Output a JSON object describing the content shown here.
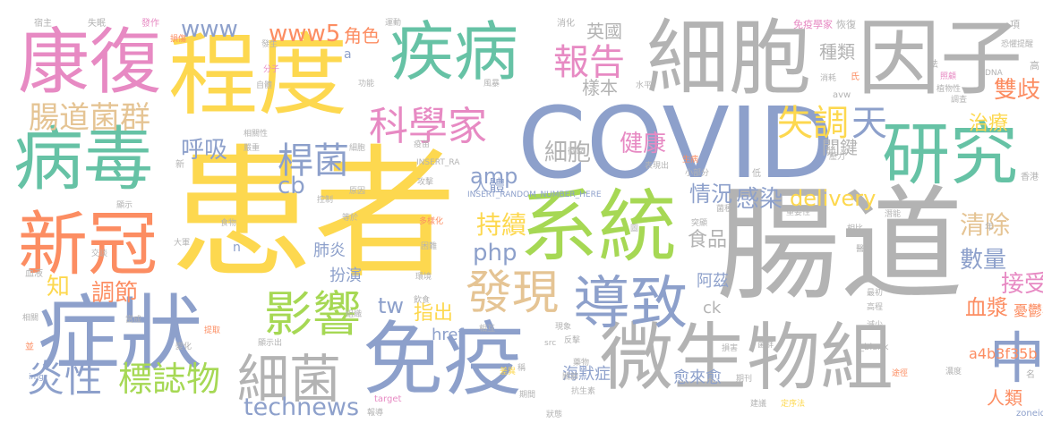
{
  "palette": {
    "yellow": "#fdd84f",
    "gray": "#b3b3b3",
    "teal": "#66c2a5",
    "pink": "#e78ac3",
    "orange": "#fc8d62",
    "blue": "#8da0cb",
    "green": "#a6d854",
    "tan": "#e5c494"
  },
  "words": [
    {
      "text": "患者",
      "color": "yellow"
    },
    {
      "text": "腸道",
      "color": "gray"
    },
    {
      "text": "COVID",
      "color": "blue"
    },
    {
      "text": "細胞",
      "color": "gray"
    },
    {
      "text": "因子",
      "color": "gray"
    },
    {
      "text": "程度",
      "color": "yellow"
    },
    {
      "text": "疾病",
      "color": "teal"
    },
    {
      "text": "康復",
      "color": "pink"
    },
    {
      "text": "病毒",
      "color": "teal"
    },
    {
      "text": "系統",
      "color": "green"
    },
    {
      "text": "免疫",
      "color": "blue"
    },
    {
      "text": "微生物組",
      "color": "gray"
    },
    {
      "text": "症狀",
      "color": "blue"
    },
    {
      "text": "新冠",
      "color": "orange"
    },
    {
      "text": "研究",
      "color": "teal"
    },
    {
      "text": "導致",
      "color": "blue"
    },
    {
      "text": "細菌",
      "color": "gray"
    },
    {
      "text": "影響",
      "color": "green"
    },
    {
      "text": "發現",
      "color": "tan"
    },
    {
      "text": "科學家",
      "color": "pink"
    },
    {
      "text": "報告",
      "color": "pink"
    },
    {
      "text": "桿菌",
      "color": "blue"
    },
    {
      "text": "腸道菌群",
      "color": "tan"
    },
    {
      "text": "標誌物",
      "color": "green"
    },
    {
      "text": "炎性",
      "color": "blue"
    },
    {
      "text": "technews",
      "color": "blue"
    },
    {
      "text": "中",
      "color": "blue"
    },
    {
      "text": "失調",
      "color": "yellow"
    },
    {
      "text": "天",
      "color": "blue"
    },
    {
      "text": "www5",
      "color": "orange"
    },
    {
      "text": "www",
      "color": "blue"
    },
    {
      "text": "呼吸",
      "color": "blue"
    },
    {
      "text": "細胞",
      "color": "gray"
    },
    {
      "text": "健康",
      "color": "pink"
    },
    {
      "text": "感染",
      "color": "blue"
    },
    {
      "text": "delivery",
      "color": "yellow"
    },
    {
      "text": "持續",
      "color": "yellow"
    },
    {
      "text": "amp",
      "color": "blue"
    },
    {
      "text": "情況",
      "color": "blue"
    },
    {
      "text": "雙歧",
      "color": "orange"
    },
    {
      "text": "治療",
      "color": "yellow"
    },
    {
      "text": "關鍵",
      "color": "gray"
    },
    {
      "text": "種類",
      "color": "gray"
    },
    {
      "text": "清除",
      "color": "tan"
    },
    {
      "text": "數量",
      "color": "blue"
    },
    {
      "text": "接受",
      "color": "pink"
    },
    {
      "text": "血漿",
      "color": "orange"
    },
    {
      "text": "憂鬱症",
      "color": "orange"
    },
    {
      "text": "a4b3f35b",
      "color": "orange"
    },
    {
      "text": "英國",
      "color": "gray"
    },
    {
      "text": "樣本",
      "color": "gray"
    },
    {
      "text": "角色",
      "color": "orange"
    },
    {
      "text": "cb",
      "color": "blue"
    },
    {
      "text": "php",
      "color": "blue"
    },
    {
      "text": "食品",
      "color": "gray"
    },
    {
      "text": "tw",
      "color": "blue"
    },
    {
      "text": "指出",
      "color": "yellow"
    },
    {
      "text": "href",
      "color": "blue"
    },
    {
      "text": "阿茲",
      "color": "blue"
    },
    {
      "text": "海默症",
      "color": "blue"
    },
    {
      "text": "愈來愈",
      "color": "blue"
    },
    {
      "text": "人類",
      "color": "orange"
    },
    {
      "text": "肺炎",
      "color": "blue"
    },
    {
      "text": "扮演",
      "color": "blue"
    },
    {
      "text": "調節",
      "color": "orange"
    },
    {
      "text": "知",
      "color": "yellow"
    },
    {
      "text": "人體",
      "color": "blue"
    },
    {
      "text": "ck",
      "color": "gray"
    },
    {
      "text": "n",
      "color": "blue"
    },
    {
      "text": "a",
      "color": "blue"
    },
    {
      "text": "免疫學家",
      "color": "pink"
    },
    {
      "text": "恢復",
      "color": "gray"
    },
    {
      "text": "項",
      "color": "gray"
    },
    {
      "text": "消化",
      "color": "gray"
    },
    {
      "text": "運動",
      "color": "gray"
    },
    {
      "text": "INSERT_RANDOM_NUMBER_HERE",
      "color": "blue"
    },
    {
      "text": "INSERT_RA",
      "color": "gray"
    },
    {
      "text": "zoneid",
      "color": "blue"
    },
    {
      "text": "_blank",
      "color": "gray"
    },
    {
      "text": "target",
      "color": "pink"
    },
    {
      "text": "img",
      "color": "blue"
    },
    {
      "text": "src",
      "color": "gray"
    },
    {
      "text": "avw",
      "color": "gray"
    },
    {
      "text": "DNA",
      "color": "gray"
    },
    {
      "text": "高",
      "color": "gray"
    },
    {
      "text": "香港",
      "color": "gray"
    },
    {
      "text": "血液",
      "color": "gray"
    },
    {
      "text": "損傷",
      "color": "orange"
    },
    {
      "text": "發作",
      "color": "pink"
    },
    {
      "text": "失眠",
      "color": "gray"
    },
    {
      "text": "宿主",
      "color": "gray"
    },
    {
      "text": "表現出",
      "color": "gray"
    },
    {
      "text": "生病",
      "color": "orange"
    },
    {
      "text": "小部分",
      "color": "gray"
    },
    {
      "text": "原因",
      "color": "gray"
    },
    {
      "text": "相互",
      "color": "gray"
    },
    {
      "text": "現象",
      "color": "gray"
    },
    {
      "text": "反擊",
      "color": "gray"
    },
    {
      "text": "藥物",
      "color": "gray"
    },
    {
      "text": "抗生素",
      "color": "gray"
    },
    {
      "text": "關節",
      "color": "gray"
    },
    {
      "text": "期刊",
      "color": "gray"
    },
    {
      "text": "菌群",
      "color": "gray"
    },
    {
      "text": "損害",
      "color": "gray"
    },
    {
      "text": "醫學",
      "color": "gray"
    },
    {
      "text": "提取",
      "color": "orange"
    },
    {
      "text": "多樣化",
      "color": "orange"
    },
    {
      "text": "困難",
      "color": "gray"
    },
    {
      "text": "大軍",
      "color": "gray"
    },
    {
      "text": "食物",
      "color": "gray"
    },
    {
      "text": "控制",
      "color": "gray"
    },
    {
      "text": "顯示",
      "color": "gray"
    },
    {
      "text": "發生",
      "color": "gray"
    },
    {
      "text": "分子",
      "color": "pink"
    },
    {
      "text": "消耗",
      "color": "gray"
    },
    {
      "text": "恐懼",
      "color": "gray"
    },
    {
      "text": "植物性",
      "color": "gray"
    },
    {
      "text": "照顧",
      "color": "pink"
    },
    {
      "text": "調查",
      "color": "gray"
    },
    {
      "text": "重要性",
      "color": "gray"
    },
    {
      "text": "相比",
      "color": "gray"
    },
    {
      "text": "潛能",
      "color": "gray"
    },
    {
      "text": "濃度",
      "color": "gray"
    },
    {
      "text": "壓力",
      "color": "gray"
    },
    {
      "text": "相關性",
      "color": "gray"
    },
    {
      "text": "嚴重",
      "color": "gray"
    },
    {
      "text": "變化",
      "color": "gray"
    },
    {
      "text": "疫苗",
      "color": "gray"
    },
    {
      "text": "功能",
      "color": "gray"
    },
    {
      "text": "自體",
      "color": "gray"
    },
    {
      "text": "水平",
      "color": "gray"
    },
    {
      "text": "風暴",
      "color": "gray"
    },
    {
      "text": "攻擊",
      "color": "gray"
    },
    {
      "text": "等於",
      "color": "gray"
    },
    {
      "text": "當成",
      "color": "gray"
    },
    {
      "text": "相關",
      "color": "gray"
    },
    {
      "text": "顯示出",
      "color": "gray"
    },
    {
      "text": "組織",
      "color": "gray"
    },
    {
      "text": "飲食",
      "color": "gray"
    },
    {
      "text": "環境",
      "color": "gray"
    },
    {
      "text": "稱",
      "color": "gray"
    },
    {
      "text": "狀態",
      "color": "gray"
    },
    {
      "text": "期間",
      "color": "gray"
    },
    {
      "text": "差異",
      "color": "gray"
    },
    {
      "text": "定序法",
      "color": "gray"
    },
    {
      "text": "建議",
      "color": "gray"
    },
    {
      "text": "高程",
      "color": "gray"
    },
    {
      "text": "最初",
      "color": "gray"
    },
    {
      "text": "減少",
      "color": "gray"
    },
    {
      "text": "突顯",
      "color": "gray"
    },
    {
      "text": "菌種",
      "color": "gray"
    },
    {
      "text": "徵象",
      "color": "gray"
    },
    {
      "text": "途徑",
      "color": "gray"
    },
    {
      "text": "新",
      "color": "gray"
    },
    {
      "text": "法",
      "color": "gray"
    },
    {
      "text": "氏",
      "color": "gray"
    },
    {
      "text": "名",
      "color": "gray"
    },
    {
      "text": "低",
      "color": "gray"
    },
    {
      "text": "並",
      "color": "gray"
    },
    {
      "text": "年",
      "color": "gray"
    },
    {
      "text": "提醒",
      "color": "gray"
    },
    {
      "text": "細胞",
      "color": "gray"
    },
    {
      "text": "圖",
      "color": "gray"
    },
    {
      "text": "交談",
      "color": "gray"
    },
    {
      "text": "報導",
      "color": "gray"
    }
  ]
}
